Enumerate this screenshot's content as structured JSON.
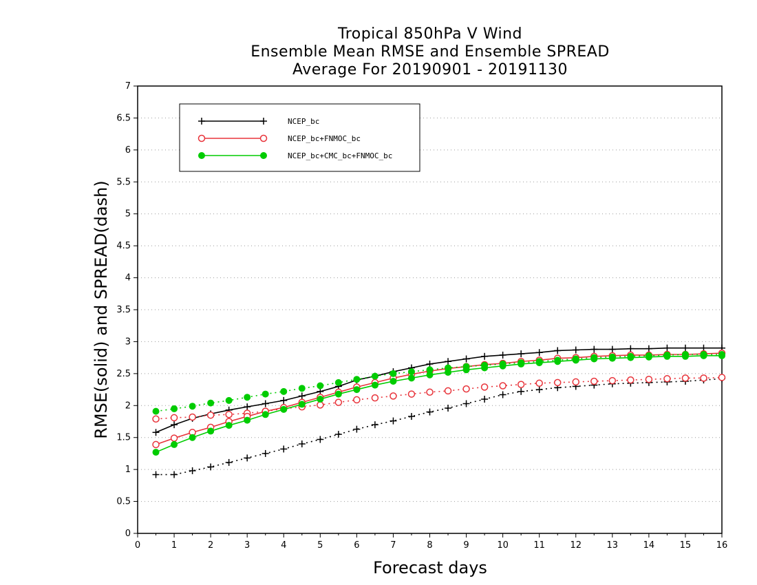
{
  "chart_data": {
    "type": "line",
    "title_lines": [
      "Tropical 850hPa V Wind",
      "Ensemble Mean RMSE and Ensemble SPREAD",
      "Average For 20190901 - 20191130"
    ],
    "xlabel": "Forecast days",
    "ylabel": "RMSE(solid) and SPREAD(dash)",
    "xlim": [
      0,
      16
    ],
    "ylim": [
      0,
      7
    ],
    "xticks": [
      "0",
      "1",
      "2",
      "3",
      "4",
      "5",
      "6",
      "7",
      "8",
      "9",
      "10",
      "11",
      "12",
      "13",
      "14",
      "15",
      "16"
    ],
    "yticks": [
      "0",
      "0.5",
      "1",
      "1.5",
      "2",
      "2.5",
      "3",
      "3.5",
      "4",
      "4.5",
      "5",
      "5.5",
      "6",
      "6.5",
      "7"
    ],
    "grid": "horizontal dotted",
    "legend_placement": "top-left",
    "x": [
      0.5,
      1,
      1.5,
      2,
      2.5,
      3,
      3.5,
      4,
      4.5,
      5,
      5.5,
      6,
      6.5,
      7,
      7.5,
      8,
      8.5,
      9,
      9.5,
      10,
      10.5,
      11,
      11.5,
      12,
      12.5,
      13,
      13.5,
      14,
      14.5,
      15,
      15.5,
      16
    ],
    "series": [
      {
        "name": "NCEP_bc",
        "color": "#000000",
        "marker": "plus",
        "rmse": [
          1.58,
          1.7,
          1.8,
          1.87,
          1.93,
          1.98,
          2.03,
          2.08,
          2.15,
          2.22,
          2.3,
          2.4,
          2.46,
          2.53,
          2.59,
          2.65,
          2.69,
          2.73,
          2.77,
          2.79,
          2.81,
          2.83,
          2.86,
          2.87,
          2.88,
          2.88,
          2.89,
          2.89,
          2.9,
          2.9,
          2.9,
          2.9
        ],
        "spread": [
          0.92,
          0.92,
          0.98,
          1.04,
          1.11,
          1.18,
          1.25,
          1.32,
          1.4,
          1.47,
          1.55,
          1.63,
          1.7,
          1.76,
          1.83,
          1.9,
          1.96,
          2.03,
          2.1,
          2.17,
          2.22,
          2.25,
          2.28,
          2.3,
          2.32,
          2.34,
          2.35,
          2.36,
          2.37,
          2.38,
          2.4,
          2.42
        ]
      },
      {
        "name": "NCEP_bc+FNMOC_bc",
        "color": "#e8333a",
        "marker": "open-circle",
        "rmse": [
          1.39,
          1.49,
          1.58,
          1.66,
          1.75,
          1.83,
          1.91,
          1.97,
          2.05,
          2.13,
          2.21,
          2.29,
          2.36,
          2.43,
          2.49,
          2.54,
          2.58,
          2.61,
          2.64,
          2.66,
          2.69,
          2.71,
          2.74,
          2.75,
          2.77,
          2.78,
          2.79,
          2.79,
          2.8,
          2.8,
          2.81,
          2.82
        ],
        "spread": [
          1.79,
          1.81,
          1.82,
          1.85,
          1.86,
          1.88,
          1.91,
          1.95,
          1.98,
          2.01,
          2.05,
          2.09,
          2.12,
          2.15,
          2.18,
          2.21,
          2.23,
          2.26,
          2.29,
          2.31,
          2.33,
          2.35,
          2.36,
          2.37,
          2.38,
          2.39,
          2.4,
          2.41,
          2.42,
          2.43,
          2.43,
          2.44
        ]
      },
      {
        "name": "NCEP_bc+CMC_bc+FNMOC_bc",
        "color": "#00cc00",
        "marker": "filled-circle",
        "rmse": [
          1.27,
          1.39,
          1.5,
          1.6,
          1.69,
          1.77,
          1.86,
          1.94,
          2.02,
          2.1,
          2.18,
          2.25,
          2.32,
          2.38,
          2.43,
          2.48,
          2.52,
          2.56,
          2.59,
          2.62,
          2.65,
          2.67,
          2.69,
          2.71,
          2.73,
          2.74,
          2.75,
          2.76,
          2.77,
          2.77,
          2.78,
          2.78
        ],
        "spread": [
          1.91,
          1.95,
          1.99,
          2.04,
          2.08,
          2.13,
          2.18,
          2.22,
          2.27,
          2.31,
          2.36,
          2.41,
          2.46,
          2.5,
          2.53,
          2.56,
          2.59,
          2.61,
          2.63,
          2.65,
          2.67,
          2.69,
          2.71,
          2.73,
          2.75,
          2.76,
          2.77,
          2.78,
          2.79,
          2.8,
          2.8,
          2.8
        ]
      }
    ]
  }
}
